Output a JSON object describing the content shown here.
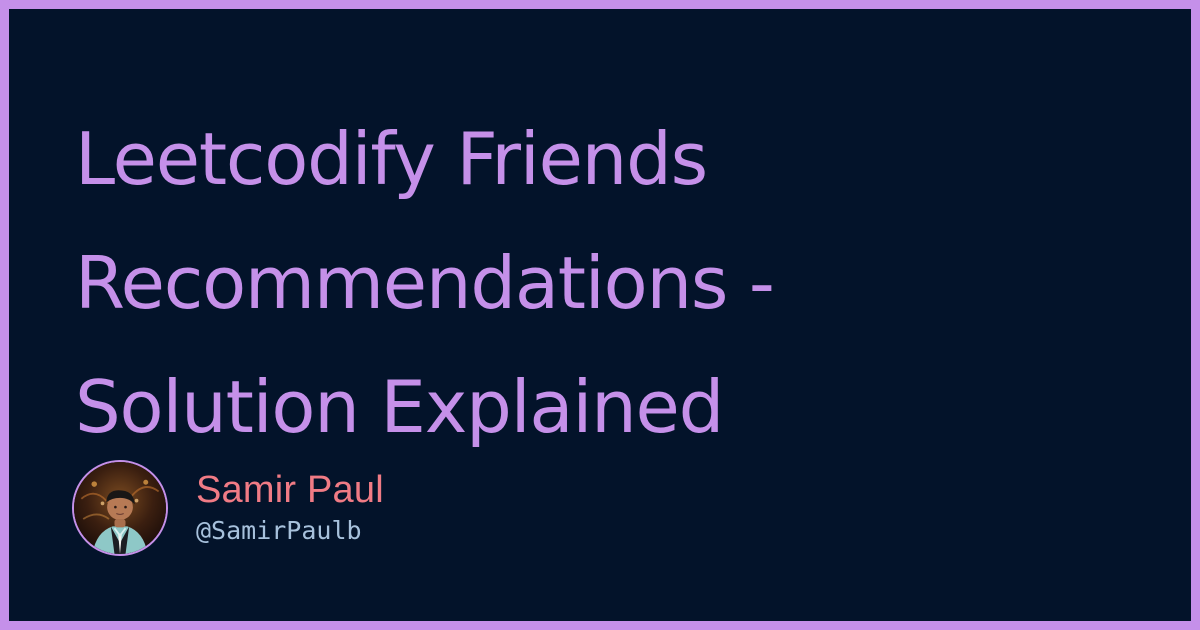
{
  "title": {
    "line1": "Leetcodify Friends",
    "line2": "Recommendations -",
    "line3": "Solution Explained"
  },
  "author": {
    "name": "Samir Paul",
    "handle": "@SamirPaulb"
  },
  "colors": {
    "border": "#c590e9",
    "background": "#03132a",
    "title": "#c590e9",
    "name": "#f07b85",
    "handle": "#a7c1dc"
  }
}
